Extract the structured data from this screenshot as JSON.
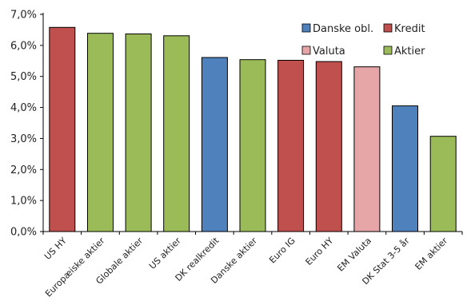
{
  "chart_data": {
    "type": "bar",
    "categories": [
      "US HY",
      "Europæiske aktier",
      "Globale aktier",
      "US aktier",
      "DK realkredit",
      "Danske aktier",
      "Euro IG",
      "Euro HY",
      "EM Valuta",
      "DK Stat 3-5 år",
      "EM aktier"
    ],
    "values": [
      6.58,
      6.39,
      6.37,
      6.31,
      5.61,
      5.54,
      5.52,
      5.48,
      5.31,
      4.05,
      3.07
    ],
    "groups": [
      "Kredit",
      "Aktier",
      "Aktier",
      "Aktier",
      "Danske obl.",
      "Aktier",
      "Kredit",
      "Kredit",
      "Valuta",
      "Danske obl.",
      "Aktier"
    ],
    "ylim": [
      0,
      7
    ],
    "ytick_step": 1,
    "ytick_labels": [
      "0,0%",
      "1,0%",
      "2,0%",
      "3,0%",
      "4,0%",
      "5,0%",
      "6,0%",
      "7,0%"
    ],
    "grid": false,
    "legend_position": "top-right",
    "legend": [
      {
        "name": "Danske obl.",
        "color": "#4f81bd"
      },
      {
        "name": "Kredit",
        "color": "#c0504d"
      },
      {
        "name": "Valuta",
        "color": "#e6a5a6"
      },
      {
        "name": "Aktier",
        "color": "#9bbb59"
      }
    ]
  }
}
